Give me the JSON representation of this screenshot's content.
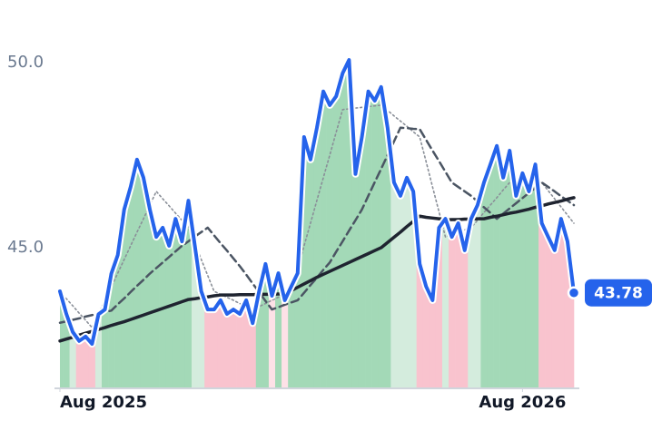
{
  "chart_data": {
    "type": "line",
    "xlim": [
      0,
      80
    ],
    "xticks": [
      {
        "value": 0,
        "label": "Aug 2025"
      },
      {
        "value": 72,
        "label": "Aug 2026"
      }
    ],
    "ylim": [
      41.2,
      51.2
    ],
    "yticks": [
      {
        "value": 45,
        "label": "45.0"
      },
      {
        "value": 50,
        "label": "50.0"
      }
    ],
    "series": [
      {
        "color": "#2563eb",
        "values": [
          43.82,
          43.21,
          42.72,
          42.48,
          42.6,
          42.4,
          43.2,
          43.33,
          44.3,
          44.8,
          46.03,
          46.64,
          47.38,
          46.89,
          46.03,
          45.29,
          45.54,
          45.05,
          45.78,
          45.17,
          46.27,
          45.05,
          43.82,
          43.33,
          43.33,
          43.58,
          43.21,
          43.33,
          43.21,
          43.58,
          42.96,
          43.82,
          44.56,
          43.7,
          44.31,
          43.58,
          43.95,
          44.31,
          47.99,
          47.38,
          48.24,
          49.22,
          48.85,
          49.09,
          49.71,
          50.07,
          46.99,
          47.99,
          49.22,
          48.97,
          49.34,
          48.24,
          46.76,
          46.4,
          46.89,
          46.52,
          44.56,
          43.95,
          43.58,
          45.54,
          45.78,
          45.29,
          45.66,
          44.93,
          45.78,
          46.15,
          46.76,
          47.25,
          47.75,
          46.89,
          47.62,
          46.4,
          47.01,
          46.52,
          47.25,
          45.66,
          45.29,
          44.93,
          45.78,
          45.17,
          43.78
        ]
      },
      {
        "color": "#1f2430",
        "values": [
          42.48,
          42.53,
          42.58,
          42.64,
          42.69,
          42.74,
          42.79,
          42.84,
          42.9,
          42.95,
          43.0,
          43.06,
          43.12,
          43.18,
          43.24,
          43.3,
          43.36,
          43.42,
          43.48,
          43.54,
          43.6,
          43.62,
          43.65,
          43.67,
          43.7,
          43.72,
          43.72,
          43.72,
          43.73,
          43.73,
          43.73,
          43.74,
          43.74,
          43.74,
          43.75,
          43.75,
          43.84,
          43.93,
          44.02,
          44.11,
          44.2,
          44.28,
          44.36,
          44.44,
          44.52,
          44.6,
          44.68,
          44.76,
          44.84,
          44.92,
          45.0,
          45.14,
          45.28,
          45.42,
          45.57,
          45.71,
          45.85,
          45.82,
          45.8,
          45.78,
          45.75,
          45.76,
          45.76,
          45.77,
          45.77,
          45.78,
          45.78,
          45.82,
          45.85,
          45.89,
          45.93,
          45.96,
          46.0,
          46.04,
          46.09,
          46.13,
          46.18,
          46.22,
          46.26,
          46.31,
          46.35
        ]
      },
      {
        "color": "#4b5563",
        "dash": "dashed",
        "values": [
          42.97,
          43.01,
          43.05,
          43.09,
          43.14,
          43.18,
          43.22,
          43.26,
          43.3,
          43.47,
          43.63,
          43.8,
          43.97,
          44.13,
          44.3,
          44.45,
          44.6,
          44.75,
          44.9,
          45.05,
          45.17,
          45.3,
          45.42,
          45.54,
          45.33,
          45.12,
          44.92,
          44.71,
          44.5,
          44.27,
          44.03,
          43.8,
          43.56,
          43.33,
          43.39,
          43.46,
          43.52,
          43.58,
          43.78,
          43.99,
          44.19,
          44.4,
          44.6,
          44.89,
          45.17,
          45.46,
          45.74,
          46.03,
          46.4,
          46.77,
          47.13,
          47.5,
          47.87,
          48.24,
          48.23,
          48.21,
          48.2,
          47.91,
          47.62,
          47.34,
          47.05,
          46.76,
          46.64,
          46.52,
          46.4,
          46.25,
          46.09,
          45.94,
          45.78,
          45.92,
          46.06,
          46.2,
          46.34,
          46.48,
          46.62,
          46.76,
          46.64,
          46.52,
          46.39,
          46.27,
          46.15
        ]
      },
      {
        "color": "#8a8f98",
        "dash": "dotted",
        "values": [
          43.82,
          43.62,
          43.43,
          43.23,
          43.04,
          42.84,
          43.21,
          43.58,
          43.94,
          44.31,
          44.68,
          45.05,
          45.42,
          45.78,
          46.15,
          46.52,
          46.32,
          46.13,
          45.93,
          45.74,
          45.54,
          45.11,
          44.68,
          44.25,
          43.82,
          43.74,
          43.66,
          43.58,
          43.49,
          43.41,
          43.33,
          43.41,
          43.49,
          43.58,
          43.66,
          43.74,
          43.82,
          44.43,
          45.05,
          45.66,
          46.28,
          46.89,
          47.5,
          48.12,
          48.73,
          48.75,
          48.77,
          48.79,
          48.81,
          48.83,
          48.85,
          48.71,
          48.56,
          48.42,
          48.28,
          48.13,
          47.99,
          47.32,
          46.64,
          45.97,
          45.29,
          45.35,
          45.42,
          45.48,
          45.54,
          45.74,
          45.95,
          46.15,
          46.35,
          46.56,
          46.76,
          46.76,
          46.76,
          46.76,
          46.76,
          46.76,
          46.54,
          46.32,
          46.1,
          45.88,
          45.66
        ]
      }
    ]
  }
}
